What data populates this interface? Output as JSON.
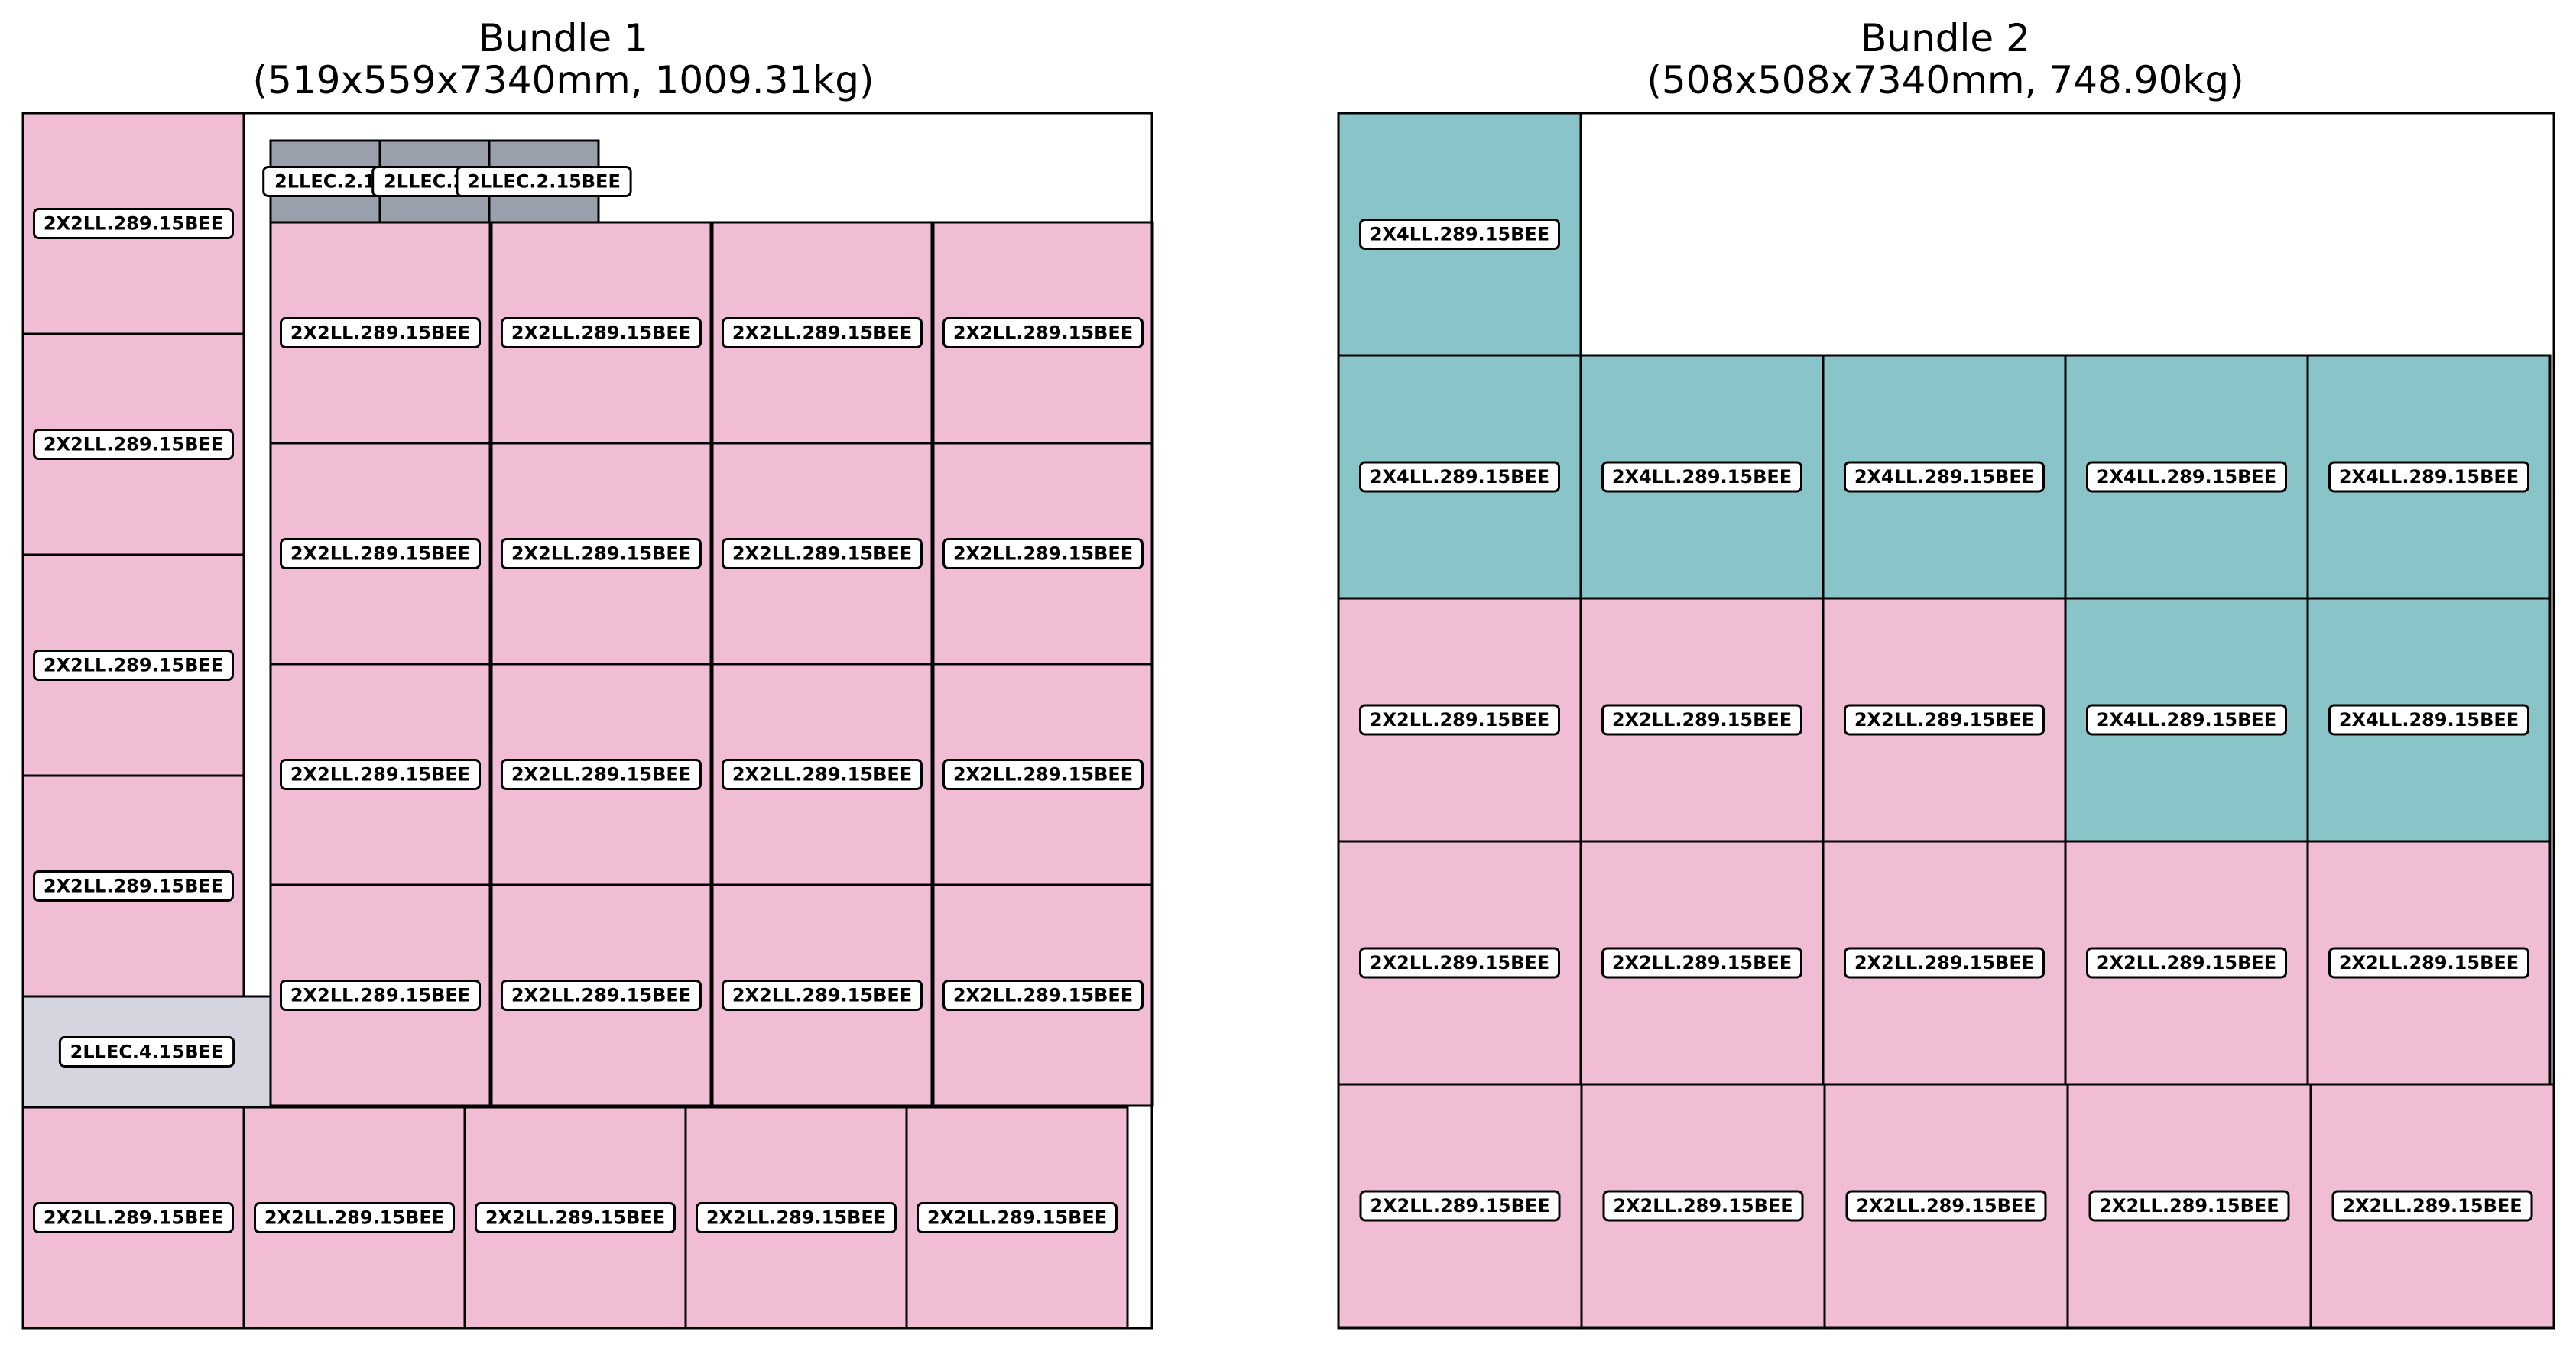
{
  "colors": {
    "2X2LL.289.15BEE": "#f1bdd4",
    "2X4LL.289.15BEE": "#89c4c8",
    "2LLEC.2.15BEE": "#9a9fac",
    "2LLEC.4.15BEE": "#d5d5df",
    "outline": "#000000",
    "label_fill": "#ffffff"
  },
  "bundles": [
    {
      "title_line1": "Bundle 1",
      "title_line2": "(519x559x7340mm, 1009.31kg)",
      "items": [
        {
          "label": "2X2LL.289.15BEE",
          "type": "2X2LL.289.15BEE"
        },
        {
          "label": "2X2LL.289.15BEE",
          "type": "2X2LL.289.15BEE"
        },
        {
          "label": "2X2LL.289.15BEE",
          "type": "2X2LL.289.15BEE"
        },
        {
          "label": "2X2LL.289.15BEE",
          "type": "2X2LL.289.15BEE"
        },
        {
          "label": "2LLEC.4.15BEE",
          "type": "2LLEC.4.15BEE"
        },
        {
          "label": "2X2LL.289.15BEE",
          "type": "2X2LL.289.15BEE"
        },
        {
          "label": "2X2LL.289.15BEE",
          "type": "2X2LL.289.15BEE"
        },
        {
          "label": "2X2LL.289.15BEE",
          "type": "2X2LL.289.15BEE"
        },
        {
          "label": "2X2LL.289.15BEE",
          "type": "2X2LL.289.15BEE"
        },
        {
          "label": "2X2LL.289.15BEE",
          "type": "2X2LL.289.15BEE"
        },
        {
          "label": "2LLEC.2.1",
          "type": "2LLEC.2.15BEE"
        },
        {
          "label": "2LLEC.2.1",
          "type": "2LLEC.2.15BEE"
        },
        {
          "label": "2LLEC.2.15BEE",
          "type": "2LLEC.2.15BEE"
        },
        {
          "label": "2X2LL.289.15BEE",
          "type": "2X2LL.289.15BEE"
        },
        {
          "label": "2X2LL.289.15BEE",
          "type": "2X2LL.289.15BEE"
        },
        {
          "label": "2X2LL.289.15BEE",
          "type": "2X2LL.289.15BEE"
        },
        {
          "label": "2X2LL.289.15BEE",
          "type": "2X2LL.289.15BEE"
        },
        {
          "label": "2X2LL.289.15BEE",
          "type": "2X2LL.289.15BEE"
        },
        {
          "label": "2X2LL.289.15BEE",
          "type": "2X2LL.289.15BEE"
        },
        {
          "label": "2X2LL.289.15BEE",
          "type": "2X2LL.289.15BEE"
        },
        {
          "label": "2X2LL.289.15BEE",
          "type": "2X2LL.289.15BEE"
        },
        {
          "label": "2X2LL.289.15BEE",
          "type": "2X2LL.289.15BEE"
        },
        {
          "label": "2X2LL.289.15BEE",
          "type": "2X2LL.289.15BEE"
        },
        {
          "label": "2X2LL.289.15BEE",
          "type": "2X2LL.289.15BEE"
        },
        {
          "label": "2X2LL.289.15BEE",
          "type": "2X2LL.289.15BEE"
        },
        {
          "label": "2X2LL.289.15BEE",
          "type": "2X2LL.289.15BEE"
        },
        {
          "label": "2X2LL.289.15BEE",
          "type": "2X2LL.289.15BEE"
        },
        {
          "label": "2X2LL.289.15BEE",
          "type": "2X2LL.289.15BEE"
        },
        {
          "label": "2X2LL.289.15BEE",
          "type": "2X2LL.289.15BEE"
        },
        {
          "label": "2X2LL.289.15BEE",
          "type": "2X2LL.289.15BEE"
        },
        {
          "label": "2X2LL.289.15BEE",
          "type": "2X2LL.289.15BEE"
        },
        {
          "label": "2X2LL.289.15BEE",
          "type": "2X2LL.289.15BEE"
        },
        {
          "label": "2X2LL.289.15BEE",
          "type": "2X2LL.289.15BEE"
        }
      ]
    },
    {
      "title_line1": "Bundle 2",
      "title_line2": "(508x508x7340mm, 748.90kg)",
      "items": [
        {
          "label": "2X4LL.289.15BEE",
          "type": "2X4LL.289.15BEE"
        },
        {
          "label": "2X4LL.289.15BEE",
          "type": "2X4LL.289.15BEE"
        },
        {
          "label": "2X4LL.289.15BEE",
          "type": "2X4LL.289.15BEE"
        },
        {
          "label": "2X4LL.289.15BEE",
          "type": "2X4LL.289.15BEE"
        },
        {
          "label": "2X4LL.289.15BEE",
          "type": "2X4LL.289.15BEE"
        },
        {
          "label": "2X4LL.289.15BEE",
          "type": "2X4LL.289.15BEE"
        },
        {
          "label": "2X2LL.289.15BEE",
          "type": "2X2LL.289.15BEE"
        },
        {
          "label": "2X2LL.289.15BEE",
          "type": "2X2LL.289.15BEE"
        },
        {
          "label": "2X2LL.289.15BEE",
          "type": "2X2LL.289.15BEE"
        },
        {
          "label": "2X4LL.289.15BEE",
          "type": "2X4LL.289.15BEE"
        },
        {
          "label": "2X4LL.289.15BEE",
          "type": "2X4LL.289.15BEE"
        },
        {
          "label": "2X2LL.289.15BEE",
          "type": "2X2LL.289.15BEE"
        },
        {
          "label": "2X2LL.289.15BEE",
          "type": "2X2LL.289.15BEE"
        },
        {
          "label": "2X2LL.289.15BEE",
          "type": "2X2LL.289.15BEE"
        },
        {
          "label": "2X2LL.289.15BEE",
          "type": "2X2LL.289.15BEE"
        },
        {
          "label": "2X2LL.289.15BEE",
          "type": "2X2LL.289.15BEE"
        },
        {
          "label": "2X2LL.289.15BEE",
          "type": "2X2LL.289.15BEE"
        },
        {
          "label": "2X2LL.289.15BEE",
          "type": "2X2LL.289.15BEE"
        },
        {
          "label": "2X2LL.289.15BEE",
          "type": "2X2LL.289.15BEE"
        },
        {
          "label": "2X2LL.289.15BEE",
          "type": "2X2LL.289.15BEE"
        },
        {
          "label": "2X2LL.289.15BEE",
          "type": "2X2LL.289.15BEE"
        }
      ]
    }
  ]
}
